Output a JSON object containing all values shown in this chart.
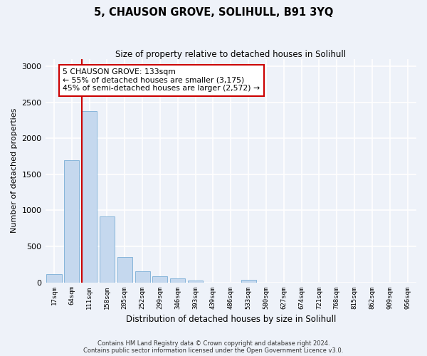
{
  "title": "5, CHAUSON GROVE, SOLIHULL, B91 3YQ",
  "subtitle": "Size of property relative to detached houses in Solihull",
  "xlabel": "Distribution of detached houses by size in Solihull",
  "ylabel": "Number of detached properties",
  "bar_color": "#c5d8ee",
  "bar_edge_color": "#7aaed6",
  "vline_color": "#cc0000",
  "vline_x_index": 2,
  "categories": [
    "17sqm",
    "64sqm",
    "111sqm",
    "158sqm",
    "205sqm",
    "252sqm",
    "299sqm",
    "346sqm",
    "393sqm",
    "439sqm",
    "486sqm",
    "533sqm",
    "580sqm",
    "627sqm",
    "674sqm",
    "721sqm",
    "768sqm",
    "815sqm",
    "862sqm",
    "909sqm",
    "956sqm"
  ],
  "values": [
    110,
    1700,
    2380,
    920,
    350,
    155,
    80,
    55,
    30,
    0,
    0,
    35,
    0,
    0,
    0,
    0,
    0,
    0,
    0,
    0,
    0
  ],
  "ylim": [
    0,
    3100
  ],
  "yticks": [
    0,
    500,
    1000,
    1500,
    2000,
    2500,
    3000
  ],
  "annotation_title": "5 CHAUSON GROVE: 133sqm",
  "annotation_line1": "← 55% of detached houses are smaller (3,175)",
  "annotation_line2": "45% of semi-detached houses are larger (2,572) →",
  "footer1": "Contains HM Land Registry data © Crown copyright and database right 2024.",
  "footer2": "Contains public sector information licensed under the Open Government Licence v3.0.",
  "background_color": "#eef2f9",
  "grid_color": "#ffffff",
  "annotation_box_color": "#ffffff",
  "annotation_box_edge": "#cc0000"
}
